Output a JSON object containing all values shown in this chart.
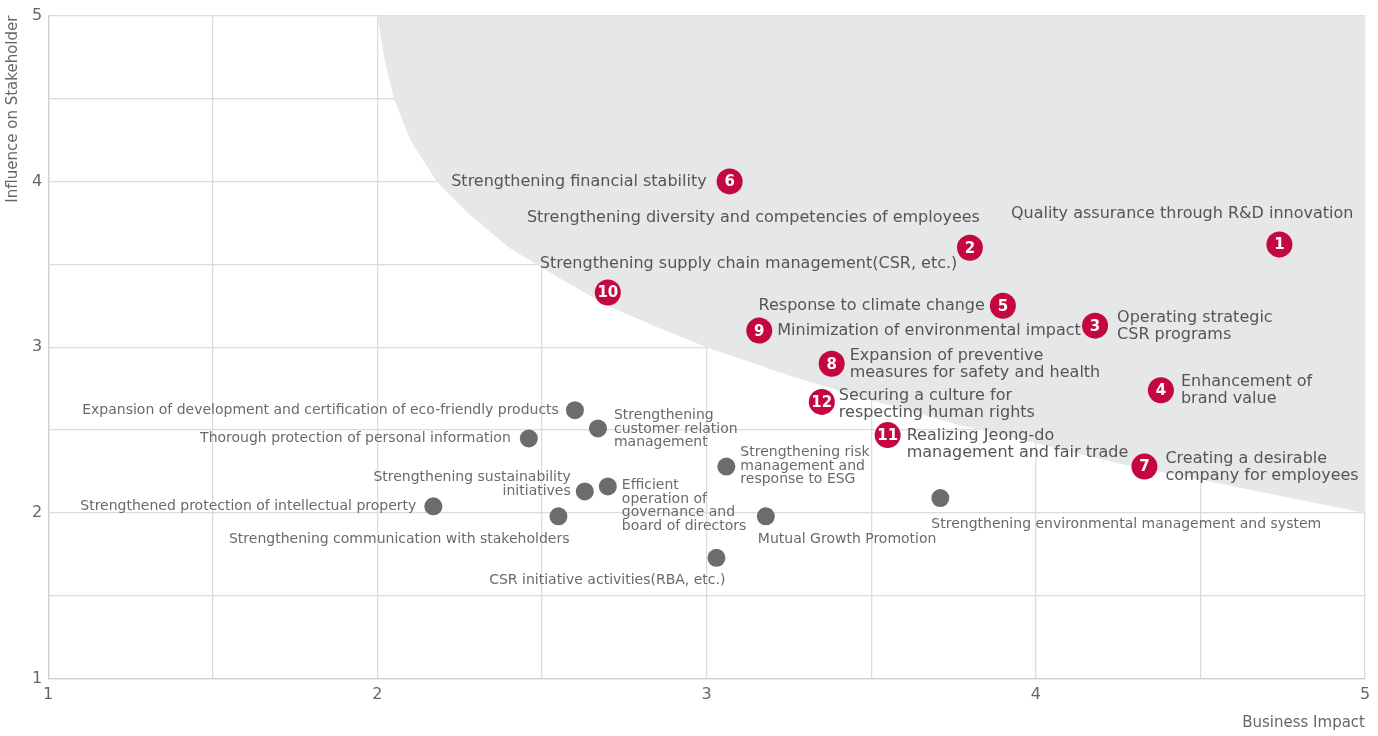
{
  "chart_data": {
    "type": "scatter",
    "xlabel": "Business Impact",
    "ylabel": "Influence on Stakeholder",
    "xlim": [
      1,
      5
    ],
    "ylim": [
      1,
      5
    ],
    "xticks": [
      1,
      {
        "value": 1.5,
        "label": null
      },
      2,
      {
        "value": 2.5,
        "label": null
      },
      3,
      {
        "value": 3.5,
        "label": null
      },
      4,
      {
        "value": 4.5,
        "label": null
      },
      5
    ],
    "yticks": [
      1,
      {
        "value": 1.5,
        "label": null
      },
      2,
      {
        "value": 2.5,
        "label": null
      },
      3,
      {
        "value": 3.5,
        "label": null
      },
      4,
      {
        "value": 4.5,
        "label": null
      },
      5
    ],
    "grid": true,
    "legend": false,
    "marker": "circle",
    "series": [
      {
        "type": "area",
        "marker": "none",
        "color": "#e6e7e9",
        "x": [
          2.0,
          2.02,
          2.05,
          2.1,
          2.18,
          2.28,
          2.4,
          2.55,
          2.7,
          2.85,
          3.0,
          3.25,
          3.5,
          3.75,
          4.0,
          4.25,
          4.5,
          4.75,
          5.0,
          5.0
        ],
        "values": [
          5.0,
          4.75,
          4.5,
          4.25,
          4.0,
          3.8,
          3.6,
          3.42,
          3.25,
          3.12,
          3.0,
          2.83,
          2.68,
          2.54,
          2.42,
          2.3,
          2.2,
          2.1,
          2.0,
          5.0
        ]
      },
      {
        "color": "#c4073f",
        "x": [
          4.74,
          3.8,
          4.18,
          4.38,
          3.9,
          3.07,
          4.33,
          3.38,
          3.16,
          2.7,
          3.55,
          3.35
        ],
        "values": [
          3.62,
          3.6,
          3.13,
          2.74,
          3.25,
          4.0,
          2.28,
          2.9,
          3.1,
          3.33,
          2.47,
          2.67
        ]
      },
      {
        "color": "#6b6c6e",
        "x": [
          2.6,
          2.46,
          2.67,
          2.63,
          2.7,
          2.17,
          2.55,
          3.06,
          3.18,
          3.03,
          3.71
        ],
        "values": [
          2.62,
          2.45,
          2.51,
          2.13,
          2.16,
          2.04,
          1.98,
          2.28,
          1.98,
          1.73,
          2.09
        ]
      }
    ],
    "annotations": [
      {
        "text": "1",
        "x": 4.74,
        "y": 3.62
      },
      {
        "text": "2",
        "x": 3.8,
        "y": 3.6
      },
      {
        "text": "3",
        "x": 4.18,
        "y": 3.13
      },
      {
        "text": "4",
        "x": 4.38,
        "y": 2.74
      },
      {
        "text": "5",
        "x": 3.9,
        "y": 3.25
      },
      {
        "text": "6",
        "x": 3.07,
        "y": 4.0
      },
      {
        "text": "7",
        "x": 4.33,
        "y": 2.28
      },
      {
        "text": "8",
        "x": 3.38,
        "y": 2.9
      },
      {
        "text": "9",
        "x": 3.16,
        "y": 3.1
      },
      {
        "text": "10",
        "x": 2.7,
        "y": 3.33
      },
      {
        "text": "11",
        "x": 3.55,
        "y": 2.47
      },
      {
        "text": "12",
        "x": 3.35,
        "y": 2.67
      },
      {
        "text": "Quality assurance through R&D innovation",
        "x": 4.74,
        "y": 3.62
      },
      {
        "text": "Strengthening diversity and competencies of employees",
        "x": 3.8,
        "y": 3.6
      },
      {
        "text": "Operating strategic\nCSR programs",
        "x": 4.18,
        "y": 3.13
      },
      {
        "text": "Enhancement of\nbrand value",
        "x": 4.38,
        "y": 2.74
      },
      {
        "text": "Response to climate change",
        "x": 3.9,
        "y": 3.25
      },
      {
        "text": "Strengthening financial stability",
        "x": 3.07,
        "y": 4.0
      },
      {
        "text": "Creating a desirable\ncompany for employees",
        "x": 4.33,
        "y": 2.28
      },
      {
        "text": "Expansion of preventive\nmeasures for safety and health",
        "x": 3.38,
        "y": 2.9
      },
      {
        "text": "Minimization of environmental impact",
        "x": 3.16,
        "y": 3.1
      },
      {
        "text": "Strengthening supply chain management(CSR, etc.)",
        "x": 2.7,
        "y": 3.33
      },
      {
        "text": "Realizing Jeong-do\nmanagement and fair trade",
        "x": 3.55,
        "y": 2.47
      },
      {
        "text": "Securing a culture for\nrespecting human rights",
        "x": 3.35,
        "y": 2.67
      },
      {
        "text": "Expansion of development and certification of eco-friendly products",
        "x": 2.6,
        "y": 2.62
      },
      {
        "text": "Thorough protection of personal information",
        "x": 2.46,
        "y": 2.45
      },
      {
        "text": "Strengthening\ncustomer relation\nmanagement",
        "x": 2.67,
        "y": 2.51
      },
      {
        "text": "Strengthening sustainability\ninitiatives",
        "x": 2.63,
        "y": 2.13
      },
      {
        "text": "Efficient\noperation of\ngovernance and\nboard of directors",
        "x": 2.7,
        "y": 2.16
      },
      {
        "text": "Strengthened protection of intellectual property",
        "x": 2.17,
        "y": 2.04
      },
      {
        "text": "Strengthening communication with stakeholders",
        "x": 2.55,
        "y": 1.98
      },
      {
        "text": "Strengthening risk\nmanagement and\nresponse to ESG",
        "x": 3.06,
        "y": 2.28
      },
      {
        "text": "Mutual Growth Promotion",
        "x": 3.18,
        "y": 1.98
      },
      {
        "text": "CSR initiative activities(RBA, etc.)",
        "x": 3.03,
        "y": 1.73
      },
      {
        "text": "Strengthening environmental management and system",
        "x": 3.71,
        "y": 2.09
      }
    ]
  }
}
